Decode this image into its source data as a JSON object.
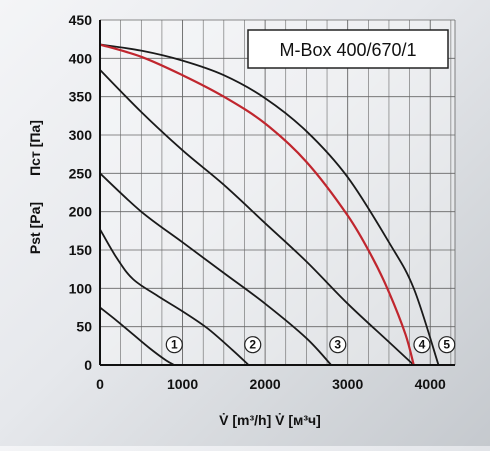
{
  "chart_data": {
    "type": "line",
    "title": "M-Box 400/670/1",
    "xlabel": "V̇ [m³/h]  V̇ [м³ч]",
    "ylabel_en": "Pst [Pa]",
    "ylabel_ru": "Пст [Па]",
    "xlim": [
      0,
      4300
    ],
    "ylim": [
      0,
      450
    ],
    "xticks": [
      "0",
      "1000",
      "2000",
      "3000",
      "4000"
    ],
    "yticks": [
      "0",
      "50",
      "100",
      "150",
      "200",
      "250",
      "300",
      "350",
      "400",
      "450"
    ],
    "grid": true,
    "series": [
      {
        "name": "1",
        "color": "#1a1a1a",
        "x": [
          0,
          200,
          400,
          600,
          800,
          900
        ],
        "y": [
          75,
          58,
          40,
          22,
          6,
          0
        ]
      },
      {
        "name": "2",
        "color": "#1a1a1a",
        "x": [
          0,
          200,
          400,
          700,
          1000,
          1300,
          1600,
          1800
        ],
        "y": [
          177,
          140,
          112,
          90,
          70,
          48,
          20,
          0
        ]
      },
      {
        "name": "3",
        "color": "#1a1a1a",
        "x": [
          0,
          500,
          1000,
          1500,
          2000,
          2500,
          2800
        ],
        "y": [
          250,
          200,
          160,
          120,
          80,
          35,
          0
        ]
      },
      {
        "name": "4",
        "color": "#1a1a1a",
        "x": [
          0,
          500,
          1000,
          1500,
          2000,
          2500,
          3000,
          3500,
          3800
        ],
        "y": [
          385,
          330,
          280,
          235,
          185,
          135,
          80,
          30,
          0
        ]
      },
      {
        "name": "5",
        "color": "#1a1a1a",
        "x": [
          0,
          500,
          1000,
          1500,
          2000,
          2500,
          3000,
          3500,
          3800,
          4100
        ],
        "y": [
          418,
          410,
          397,
          378,
          348,
          305,
          245,
          160,
          100,
          0
        ]
      },
      {
        "name": "",
        "color": "#c0262e",
        "x": [
          0,
          500,
          1000,
          1500,
          2000,
          2500,
          3000,
          3300,
          3500,
          3700,
          3800
        ],
        "y": [
          418,
          402,
          378,
          350,
          315,
          265,
          195,
          140,
          95,
          40,
          0
        ]
      }
    ],
    "curve_labels": [
      {
        "text": "1",
        "x": 900,
        "y": 20
      },
      {
        "text": "2",
        "x": 1850,
        "y": 20
      },
      {
        "text": "3",
        "x": 2880,
        "y": 20
      },
      {
        "text": "4",
        "x": 3900,
        "y": 20
      },
      {
        "text": "5",
        "x": 4200,
        "y": 20
      }
    ]
  }
}
